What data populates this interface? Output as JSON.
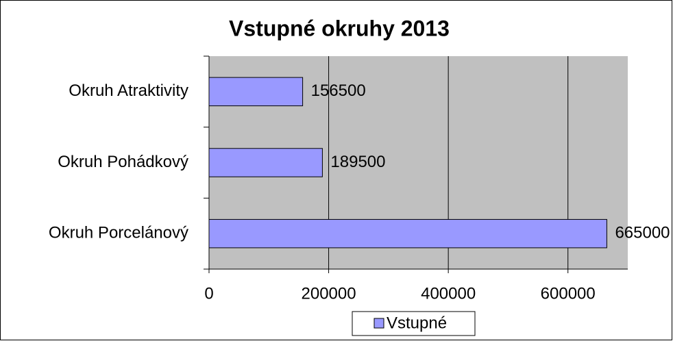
{
  "chart_data": {
    "type": "barh",
    "title": "Vstupné okruhy 2013",
    "categories": [
      "Okruh Atraktivity",
      "Okruh Pohádkový",
      "Okruh Porcelánový"
    ],
    "series": [
      {
        "name": "Vstupné",
        "color": "#9999ff",
        "values": [
          156500,
          189500,
          665000
        ]
      }
    ],
    "xlim": [
      0,
      700000
    ],
    "xticks": [
      0,
      200000,
      400000,
      600000
    ],
    "grid": true,
    "legend": "bottom"
  }
}
